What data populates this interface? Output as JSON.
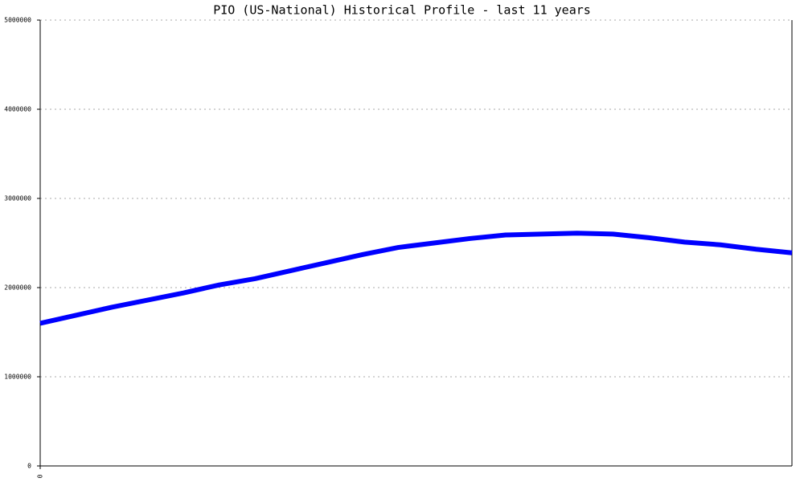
{
  "chart_data": {
    "type": "line",
    "title": "PIO (US-National) Historical Profile - last 11 years",
    "x": [
      0,
      1,
      2,
      3,
      4,
      5,
      6,
      7,
      8,
      9,
      10,
      11,
      12,
      13,
      14,
      15,
      16,
      17,
      18,
      19,
      20,
      21
    ],
    "series": [
      {
        "name": "PIO",
        "color": "#0000ff",
        "values": [
          1600000,
          1690000,
          1780000,
          1860000,
          1940000,
          2030000,
          2100000,
          2190000,
          2280000,
          2370000,
          2450000,
          2500000,
          2550000,
          2590000,
          2600000,
          2610000,
          2600000,
          2560000,
          2510000,
          2480000,
          2430000,
          2390000
        ]
      }
    ],
    "xlim": [
      0,
      21
    ],
    "xticks": [
      0
    ],
    "ylim": [
      0,
      5000000
    ],
    "yticks": [
      0,
      1000000,
      2000000,
      3000000,
      4000000,
      5000000
    ],
    "grid": true
  }
}
